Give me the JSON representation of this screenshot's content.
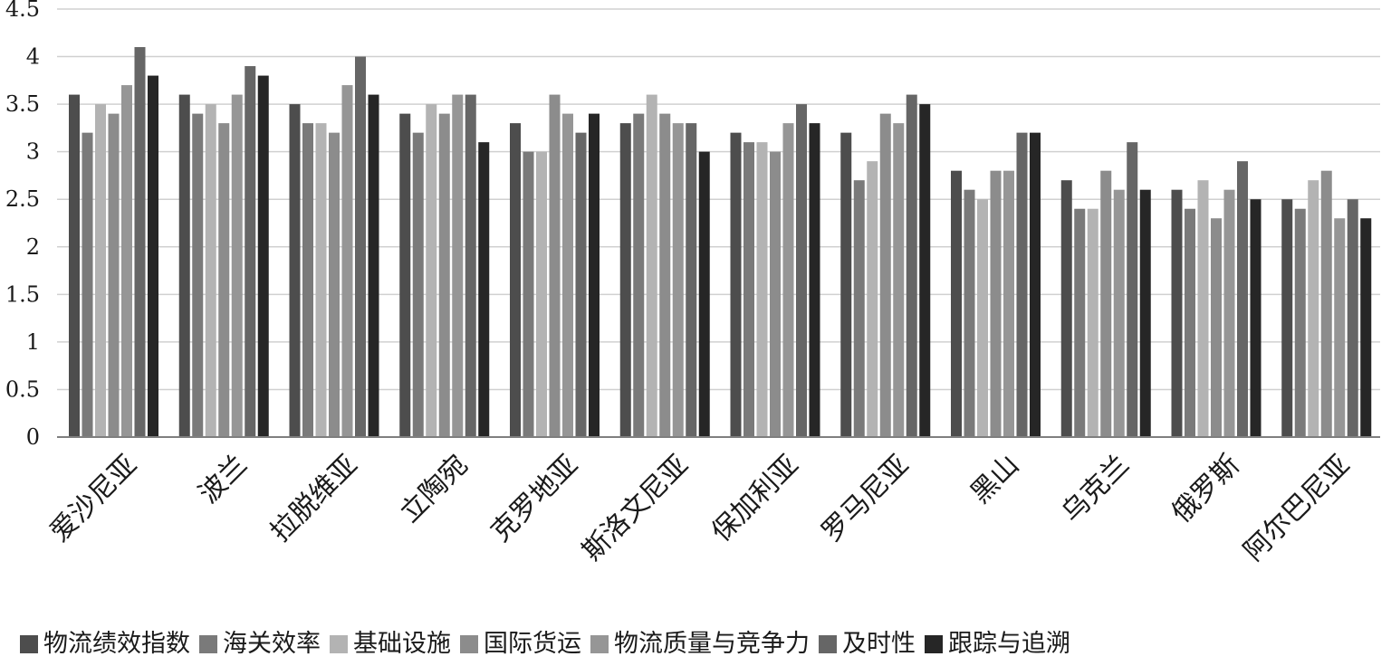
{
  "chart_data": {
    "type": "bar",
    "title": "",
    "xlabel": "",
    "ylabel": "",
    "ylim": [
      0,
      4.5
    ],
    "y_ticks": [
      "0",
      "0.5",
      "1",
      "1.5",
      "2",
      "2.5",
      "3",
      "3.5",
      "4",
      "4.5"
    ],
    "grid": true,
    "legend_position": "bottom",
    "categories": [
      "爱沙尼亚",
      "波兰",
      "拉脱维亚",
      "立陶宛",
      "克罗地亚",
      "斯洛文尼亚",
      "保加利亚",
      "罗马尼亚",
      "黑山",
      "乌克兰",
      "俄罗斯",
      "阿尔巴尼亚"
    ],
    "series": [
      {
        "name": "物流绩效指数",
        "color": "#4d4d4d",
        "values": [
          3.6,
          3.6,
          3.5,
          3.4,
          3.3,
          3.3,
          3.2,
          3.2,
          2.8,
          2.7,
          2.6,
          2.5
        ]
      },
      {
        "name": "海关效率",
        "color": "#7a7a7a",
        "values": [
          3.2,
          3.4,
          3.3,
          3.2,
          3.0,
          3.4,
          3.1,
          2.7,
          2.6,
          2.4,
          2.4,
          2.4
        ]
      },
      {
        "name": "基础设施",
        "color": "#b3b3b3",
        "values": [
          3.5,
          3.5,
          3.3,
          3.5,
          3.0,
          3.6,
          3.1,
          2.9,
          2.5,
          2.4,
          2.7,
          2.7
        ]
      },
      {
        "name": "国际货运",
        "color": "#8c8c8c",
        "values": [
          3.4,
          3.3,
          3.2,
          3.4,
          3.6,
          3.4,
          3.0,
          3.4,
          2.8,
          2.8,
          2.3,
          2.8
        ]
      },
      {
        "name": "物流质量与竞争力",
        "color": "#969696",
        "values": [
          3.7,
          3.6,
          3.7,
          3.6,
          3.4,
          3.3,
          3.3,
          3.3,
          2.8,
          2.6,
          2.6,
          2.3
        ]
      },
      {
        "name": "及时性",
        "color": "#666666",
        "values": [
          4.1,
          3.9,
          4.0,
          3.6,
          3.2,
          3.3,
          3.5,
          3.6,
          3.2,
          3.1,
          2.9,
          2.5
        ]
      },
      {
        "name": "跟踪与追溯",
        "color": "#262626",
        "values": [
          3.8,
          3.8,
          3.6,
          3.1,
          3.4,
          3.0,
          3.3,
          3.5,
          3.2,
          2.6,
          2.5,
          2.3
        ]
      }
    ]
  }
}
